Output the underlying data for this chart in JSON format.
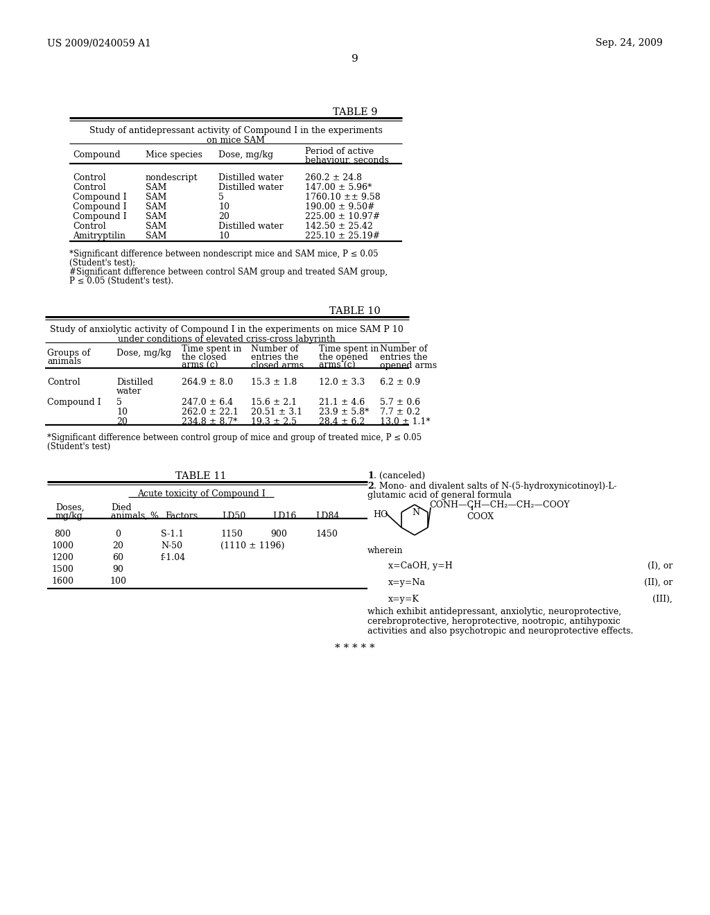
{
  "header_left": "US 2009/0240059 A1",
  "header_right": "Sep. 24, 2009",
  "page_number": "9",
  "background_color": "#ffffff",
  "table9_title": "TABLE 9",
  "table9_subtitle1": "Study of antidepressant activity of Compound I in the experiments",
  "table9_subtitle2": "on mice SAM",
  "table9_rows": [
    [
      "Control",
      "nondescript",
      "Distilled water",
      "260.2 ± 24.8"
    ],
    [
      "Control",
      "SAM",
      "Distilled water",
      "147.00 ± 5.96*"
    ],
    [
      "Compound I",
      "SAM",
      "5",
      "1760.10 ±± 9.58"
    ],
    [
      "Compound I",
      "SAM",
      "10",
      "190.00 ± 9.50#"
    ],
    [
      "Compound I",
      "SAM",
      "20",
      "225.00 ± 10.97#"
    ],
    [
      "Control",
      "SAM",
      "Distilled water",
      "142.50 ± 25.42"
    ],
    [
      "Amitryptilin",
      "SAM",
      "10",
      "225.10 ± 25.19#"
    ]
  ],
  "table9_footnote1": "*Significant difference between nondescript mice and SAM mice, P ≤ 0.05",
  "table9_footnote2": "(Student's test);",
  "table9_footnote3": "#Significant difference between control SAM group and treated SAM group,",
  "table9_footnote4": "P ≤ 0.05 (Student's test).",
  "table10_title": "TABLE 10",
  "table10_subtitle1": "Study of anxiolytic activity of Compound I in the experiments on mice SAM P 10",
  "table10_subtitle2": "under conditions of elevated criss-cross labyrinth",
  "table10_rows": [
    [
      "Control",
      "Distilled\nwater",
      "264.9 ± 8.0",
      "15.3 ± 1.8",
      "12.0 ± 3.3",
      "6.2 ± 0.9"
    ],
    [
      "Compound I",
      "5",
      "247.0 ± 6.4",
      "15.6 ± 2.1",
      "21.1 ± 4.6",
      "5.7 ± 0.6"
    ],
    [
      "",
      "10",
      "262.0 ± 22.1",
      "20.51 ± 3.1",
      "23.9 ± 5.8*",
      "7.7 ± 0.2"
    ],
    [
      "",
      "20",
      "234.8 ± 8.7*",
      "19.3 ± 2.5",
      "28.4 ± 6.2",
      "13.0 ± 1.1*"
    ]
  ],
  "table10_footnote1": "*Significant difference between control group of mice and group of treated mice, P ≤ 0.05",
  "table10_footnote2": "(Student's test)",
  "table11_title": "TABLE 11",
  "table11_subtitle": "Acute toxicity of Compound I",
  "table11_rows": [
    [
      "800",
      "0",
      "S-1.1",
      "1150",
      "900",
      "1450"
    ],
    [
      "1000",
      "20",
      "N-50",
      "(1110 ± 1196)",
      "",
      ""
    ],
    [
      "1200",
      "60",
      "f-1.04",
      "",
      "",
      ""
    ],
    [
      "1500",
      "90",
      "",
      "",
      "",
      ""
    ],
    [
      "1600",
      "100",
      "",
      "",
      "",
      ""
    ]
  ],
  "stars": "* * * * *"
}
